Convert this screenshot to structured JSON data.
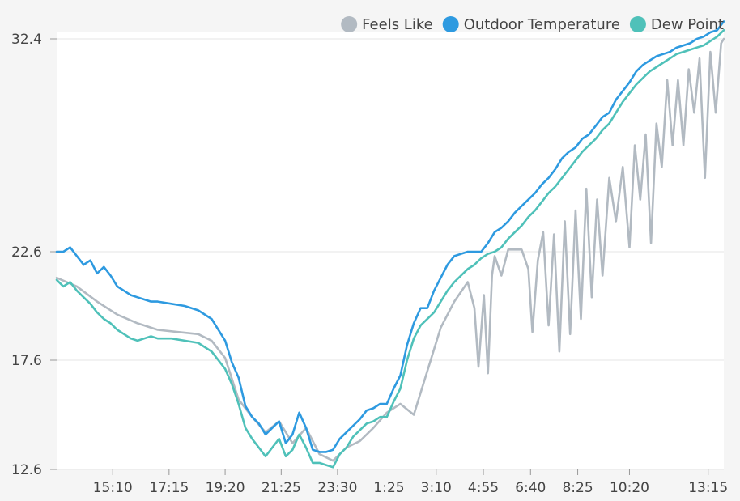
{
  "chart_data": {
    "type": "line",
    "title": "",
    "xlabel": "",
    "ylabel": "",
    "y_ticks": [
      "32.4",
      "22.6",
      "17.6",
      "12.6"
    ],
    "ylim": [
      12.6,
      32.4
    ],
    "x_ticks": [
      "15:10",
      "17:15",
      "19:20",
      "21:25",
      "23:30",
      "1:25",
      "3:10",
      "4:55",
      "6:40",
      "8:25",
      "10:20",
      "13:15"
    ],
    "x_tick_positions": [
      3.83,
      5.92,
      8.0,
      10.08,
      12.17,
      14.08,
      15.83,
      17.58,
      19.33,
      21.08,
      23.0,
      25.92
    ],
    "xlim": [
      1.75,
      26.5
    ],
    "legend_position": "top-right",
    "grid": true,
    "series": [
      {
        "name": "Feels Like",
        "color": "#b2bac2",
        "x": [
          1.75,
          2.5,
          3.25,
          4.0,
          4.75,
          5.5,
          6.25,
          7.0,
          7.5,
          8.0,
          8.5,
          9.0,
          9.5,
          10.0,
          10.5,
          11.0,
          11.5,
          12.0,
          12.5,
          13.0,
          13.5,
          14.0,
          14.5,
          15.0,
          15.5,
          16.0,
          16.5,
          17.0,
          17.25,
          17.4,
          17.6,
          17.75,
          17.9,
          18.0,
          18.25,
          18.5,
          19.0,
          19.25,
          19.4,
          19.6,
          19.8,
          20.0,
          20.2,
          20.4,
          20.6,
          20.8,
          21.0,
          21.2,
          21.4,
          21.6,
          21.8,
          22.0,
          22.25,
          22.5,
          22.75,
          23.0,
          23.2,
          23.4,
          23.6,
          23.8,
          24.0,
          24.2,
          24.4,
          24.6,
          24.8,
          25.0,
          25.2,
          25.4,
          25.6,
          25.8,
          26.0,
          26.2,
          26.4,
          26.5
        ],
        "y": [
          21.4,
          21.0,
          20.3,
          19.7,
          19.3,
          19.0,
          18.9,
          18.8,
          18.5,
          17.7,
          15.8,
          15.0,
          14.3,
          14.8,
          13.8,
          14.5,
          13.3,
          13.0,
          13.6,
          13.9,
          14.5,
          15.2,
          15.6,
          15.1,
          17.1,
          19.1,
          20.3,
          21.2,
          20.0,
          17.3,
          20.6,
          17.0,
          21.5,
          22.4,
          21.5,
          22.7,
          22.7,
          21.8,
          18.9,
          22.2,
          23.5,
          19.2,
          23.4,
          18.0,
          24.0,
          18.8,
          24.5,
          19.5,
          25.5,
          20.5,
          25.0,
          21.5,
          26.0,
          24.0,
          26.5,
          22.8,
          27.5,
          25.0,
          28.0,
          23.0,
          28.5,
          26.5,
          30.5,
          27.5,
          30.5,
          27.5,
          31.0,
          29.0,
          31.5,
          26.0,
          31.8,
          29.0,
          32.2,
          32.4
        ],
        "values": [
          21.4,
          21.0,
          20.3,
          19.7,
          19.3,
          19.0,
          18.9,
          18.8,
          18.5,
          17.7,
          15.8,
          15.0,
          14.3,
          14.8,
          13.8,
          14.5,
          13.3,
          13.0,
          13.6,
          13.9,
          14.5,
          15.2,
          15.6,
          15.1,
          17.1,
          19.1,
          20.3,
          21.2,
          20.0,
          17.3,
          20.6,
          17.0,
          21.5,
          22.4,
          21.5,
          22.7,
          22.7,
          21.8,
          18.9,
          22.2,
          23.5,
          19.2,
          23.4,
          18.0,
          24.0,
          18.8,
          24.5,
          19.5,
          25.5,
          20.5,
          25.0,
          21.5,
          26.0,
          24.0,
          26.5,
          22.8,
          27.5,
          25.0,
          28.0,
          23.0,
          28.5,
          26.5,
          30.5,
          27.5,
          30.5,
          27.5,
          31.0,
          29.0,
          31.5,
          26.0,
          31.8,
          29.0,
          32.2,
          32.4
        ]
      },
      {
        "name": "Outdoor Temperature",
        "color": "#2e9ae0",
        "x": [
          1.75,
          2.0,
          2.25,
          2.5,
          2.75,
          3.0,
          3.25,
          3.5,
          3.75,
          4.0,
          4.25,
          4.5,
          4.75,
          5.0,
          5.25,
          5.5,
          6.0,
          6.5,
          7.0,
          7.5,
          8.0,
          8.25,
          8.5,
          8.75,
          9.0,
          9.25,
          9.5,
          9.75,
          10.0,
          10.25,
          10.5,
          10.75,
          11.0,
          11.25,
          11.5,
          11.75,
          12.0,
          12.25,
          12.5,
          12.75,
          13.0,
          13.25,
          13.5,
          13.75,
          14.0,
          14.25,
          14.5,
          14.75,
          15.0,
          15.25,
          15.5,
          15.75,
          16.0,
          16.25,
          16.5,
          16.75,
          17.0,
          17.25,
          17.5,
          17.75,
          18.0,
          18.25,
          18.5,
          18.75,
          19.0,
          19.25,
          19.5,
          19.75,
          20.0,
          20.25,
          20.5,
          20.75,
          21.0,
          21.25,
          21.5,
          21.75,
          22.0,
          22.25,
          22.5,
          22.75,
          23.0,
          23.25,
          23.5,
          23.75,
          24.0,
          24.25,
          24.5,
          24.75,
          25.0,
          25.25,
          25.5,
          25.75,
          26.0,
          26.25,
          26.5
        ],
        "y": [
          22.6,
          22.6,
          22.8,
          22.4,
          22.0,
          22.2,
          21.6,
          21.9,
          21.5,
          21.0,
          20.8,
          20.6,
          20.5,
          20.4,
          20.3,
          20.3,
          20.2,
          20.1,
          19.9,
          19.5,
          18.5,
          17.5,
          16.8,
          15.5,
          15.0,
          14.7,
          14.2,
          14.5,
          14.8,
          13.8,
          14.2,
          15.2,
          14.5,
          13.5,
          13.4,
          13.4,
          13.5,
          14.0,
          14.3,
          14.6,
          14.9,
          15.3,
          15.4,
          15.6,
          15.6,
          16.3,
          16.9,
          18.3,
          19.3,
          20.0,
          20.0,
          20.8,
          21.4,
          22.0,
          22.4,
          22.5,
          22.6,
          22.6,
          22.6,
          23.0,
          23.5,
          23.7,
          24.0,
          24.4,
          24.7,
          25.0,
          25.3,
          25.7,
          26.0,
          26.4,
          26.9,
          27.2,
          27.4,
          27.8,
          28.0,
          28.4,
          28.8,
          29.0,
          29.6,
          30.0,
          30.4,
          30.9,
          31.2,
          31.4,
          31.6,
          31.7,
          31.8,
          32.0,
          32.1,
          32.2,
          32.4,
          32.5,
          32.7,
          32.8,
          33.2
        ],
        "values": [
          22.6,
          22.6,
          22.8,
          22.4,
          22.0,
          22.2,
          21.6,
          21.9,
          21.5,
          21.0,
          20.8,
          20.6,
          20.5,
          20.4,
          20.3,
          20.3,
          20.2,
          20.1,
          19.9,
          19.5,
          18.5,
          17.5,
          16.8,
          15.5,
          15.0,
          14.7,
          14.2,
          14.5,
          14.8,
          13.8,
          14.2,
          15.2,
          14.5,
          13.5,
          13.4,
          13.4,
          13.5,
          14.0,
          14.3,
          14.6,
          14.9,
          15.3,
          15.4,
          15.6,
          15.6,
          16.3,
          16.9,
          18.3,
          19.3,
          20.0,
          20.0,
          20.8,
          21.4,
          22.0,
          22.4,
          22.5,
          22.6,
          22.6,
          22.6,
          23.0,
          23.5,
          23.7,
          24.0,
          24.4,
          24.7,
          25.0,
          25.3,
          25.7,
          26.0,
          26.4,
          26.9,
          27.2,
          27.4,
          27.8,
          28.0,
          28.4,
          28.8,
          29.0,
          29.6,
          30.0,
          30.4,
          30.9,
          31.2,
          31.4,
          31.6,
          31.7,
          31.8,
          32.0,
          32.1,
          32.2,
          32.4,
          32.5,
          32.7,
          32.8,
          33.2
        ]
      },
      {
        "name": "Dew Point",
        "color": "#4fc1b9",
        "x": [
          1.75,
          2.0,
          2.25,
          2.5,
          2.75,
          3.0,
          3.25,
          3.5,
          3.75,
          4.0,
          4.25,
          4.5,
          4.75,
          5.0,
          5.25,
          5.5,
          6.0,
          6.5,
          7.0,
          7.5,
          8.0,
          8.25,
          8.5,
          8.75,
          9.0,
          9.25,
          9.5,
          9.75,
          10.0,
          10.25,
          10.5,
          10.75,
          11.0,
          11.25,
          11.5,
          11.75,
          12.0,
          12.25,
          12.5,
          12.75,
          13.0,
          13.25,
          13.5,
          13.75,
          14.0,
          14.25,
          14.5,
          14.75,
          15.0,
          15.25,
          15.5,
          15.75,
          16.0,
          16.25,
          16.5,
          16.75,
          17.0,
          17.25,
          17.5,
          17.75,
          18.0,
          18.25,
          18.5,
          18.75,
          19.0,
          19.25,
          19.5,
          19.75,
          20.0,
          20.25,
          20.5,
          20.75,
          21.0,
          21.25,
          21.5,
          21.75,
          22.0,
          22.25,
          22.5,
          22.75,
          23.0,
          23.25,
          23.5,
          23.75,
          24.0,
          24.25,
          24.5,
          24.75,
          25.0,
          25.25,
          25.5,
          25.75,
          26.0,
          26.25,
          26.5
        ],
        "y": [
          21.3,
          21.0,
          21.2,
          20.8,
          20.5,
          20.2,
          19.8,
          19.5,
          19.3,
          19.0,
          18.8,
          18.6,
          18.5,
          18.6,
          18.7,
          18.6,
          18.6,
          18.5,
          18.4,
          18.0,
          17.2,
          16.5,
          15.6,
          14.5,
          14.0,
          13.6,
          13.2,
          13.6,
          14.0,
          13.2,
          13.5,
          14.2,
          13.6,
          12.9,
          12.9,
          12.8,
          12.7,
          13.3,
          13.6,
          14.1,
          14.4,
          14.7,
          14.8,
          15.0,
          15.0,
          15.7,
          16.3,
          17.6,
          18.6,
          19.2,
          19.5,
          19.8,
          20.3,
          20.8,
          21.2,
          21.5,
          21.8,
          22.0,
          22.3,
          22.5,
          22.6,
          22.8,
          23.2,
          23.5,
          23.8,
          24.2,
          24.5,
          24.9,
          25.3,
          25.6,
          26.0,
          26.4,
          26.8,
          27.2,
          27.5,
          27.8,
          28.2,
          28.5,
          29.0,
          29.5,
          29.9,
          30.3,
          30.6,
          30.9,
          31.1,
          31.3,
          31.5,
          31.7,
          31.8,
          31.9,
          32.0,
          32.1,
          32.3,
          32.5,
          32.8
        ],
        "values": [
          21.3,
          21.0,
          21.2,
          20.8,
          20.5,
          20.2,
          19.8,
          19.5,
          19.3,
          19.0,
          18.8,
          18.6,
          18.5,
          18.6,
          18.7,
          18.6,
          18.6,
          18.5,
          18.4,
          18.0,
          17.2,
          16.5,
          15.6,
          14.5,
          14.0,
          13.6,
          13.2,
          13.6,
          14.0,
          13.2,
          13.5,
          14.2,
          13.6,
          12.9,
          12.9,
          12.8,
          12.7,
          13.3,
          13.6,
          14.1,
          14.4,
          14.7,
          14.8,
          15.0,
          15.0,
          15.7,
          16.3,
          17.6,
          18.6,
          19.2,
          19.5,
          19.8,
          20.3,
          20.8,
          21.2,
          21.5,
          21.8,
          22.0,
          22.3,
          22.5,
          22.6,
          22.8,
          23.2,
          23.5,
          23.8,
          24.2,
          24.5,
          24.9,
          25.3,
          25.6,
          26.0,
          26.4,
          26.8,
          27.2,
          27.5,
          27.8,
          28.2,
          28.5,
          29.0,
          29.5,
          29.9,
          30.3,
          30.6,
          30.9,
          31.1,
          31.3,
          31.5,
          31.7,
          31.8,
          31.9,
          32.0,
          32.1,
          32.3,
          32.5,
          32.8
        ]
      }
    ]
  }
}
